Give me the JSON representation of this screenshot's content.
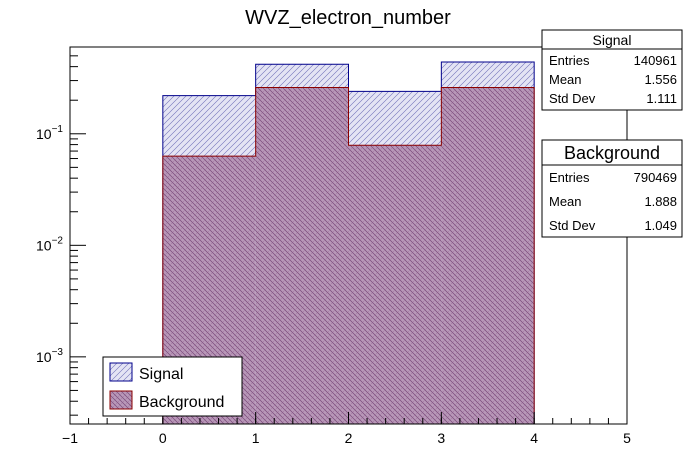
{
  "chart_data": {
    "type": "bar",
    "title": "WVZ_electron_number",
    "xlabel": "",
    "ylabel": "",
    "xlim": [
      -1,
      5
    ],
    "ylim": [
      0.00025,
      0.6
    ],
    "yscale": "log",
    "x_ticks": [
      "−1",
      "0",
      "1",
      "2",
      "3",
      "4",
      "5"
    ],
    "y_ticks": [
      {
        "value": 0.1,
        "base": "10",
        "exp": "−1"
      },
      {
        "value": 0.01,
        "base": "10",
        "exp": "−2"
      },
      {
        "value": 0.001,
        "base": "10",
        "exp": "−3"
      }
    ],
    "bin_edges": [
      0,
      1,
      2,
      3,
      4
    ],
    "series": [
      {
        "name": "Signal",
        "values": [
          0.22,
          0.42,
          0.24,
          0.44
        ],
        "color": "#00008b",
        "fill": "#dcdcf0"
      },
      {
        "name": "Background",
        "values": [
          0.063,
          0.26,
          0.079,
          0.26
        ],
        "color": "#8b0000",
        "fill": "#a887a8"
      }
    ],
    "legend": {
      "position": "bottom-left",
      "entries": [
        "Signal",
        "Background"
      ]
    },
    "stats_boxes": [
      {
        "title": "Signal",
        "rows": [
          {
            "label": "Entries",
            "value": "140961"
          },
          {
            "label": "Mean",
            "value": "1.556"
          },
          {
            "label": "Std Dev",
            "value": "1.111"
          }
        ]
      },
      {
        "title": "Background",
        "rows": [
          {
            "label": "Entries",
            "value": "790469"
          },
          {
            "label": "Mean",
            "value": "1.888"
          },
          {
            "label": "Std Dev",
            "value": "1.049"
          }
        ]
      }
    ]
  }
}
